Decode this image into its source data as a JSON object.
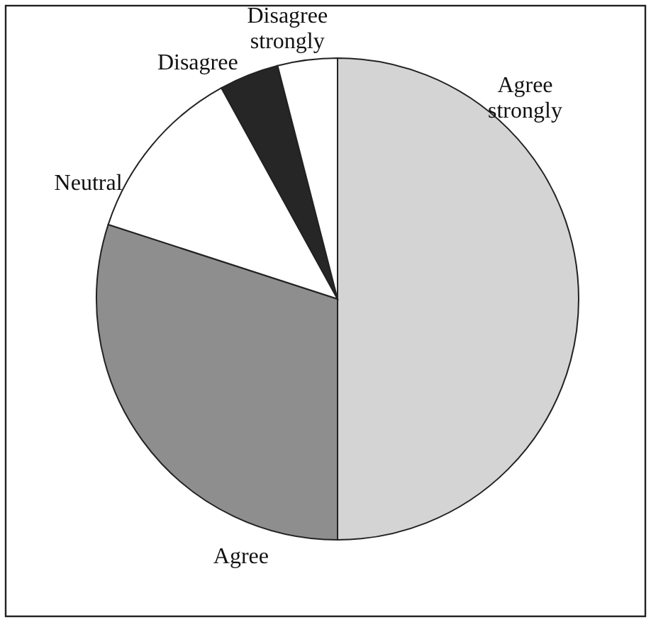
{
  "chart_data": {
    "type": "pie",
    "categories": [
      "Agree strongly",
      "Agree",
      "Neutral",
      "Disagree",
      "Disagree strongly"
    ],
    "values": [
      50,
      30,
      12,
      4,
      4
    ],
    "colors": [
      "#d4d4d4",
      "#8e8e8e",
      "#ffffff",
      "#262626",
      "#ffffff"
    ]
  }
}
